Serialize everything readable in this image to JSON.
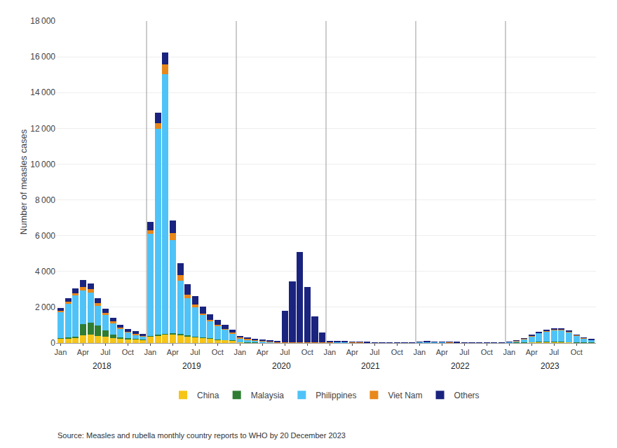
{
  "chart_data": {
    "type": "bar",
    "stacked": true,
    "grid": true,
    "legend": "bottom",
    "ylabel": "Number of measles cases",
    "source": "Source: Measles and rubella monthly country reports to WHO by 20 December 2023",
    "annotations": [
      "2018",
      "2019",
      "2020",
      "2021",
      "2022",
      "2023"
    ],
    "ylim": [
      0,
      18000
    ],
    "yticks": [
      0,
      {
        "value": 2000,
        "label": "2 000"
      },
      {
        "value": 4000,
        "label": "4 000"
      },
      {
        "value": 6000,
        "label": "6 000"
      },
      {
        "value": 8000,
        "label": "8 000"
      },
      {
        "value": 10000,
        "label": "10 000"
      },
      {
        "value": 12000,
        "label": "12 000"
      },
      {
        "value": 14000,
        "label": "14 000"
      },
      {
        "value": 16000,
        "label": "16 000"
      },
      {
        "value": 18000,
        "label": "18 000"
      }
    ],
    "categories": [
      "Jan",
      null,
      null,
      "Apr",
      null,
      null,
      "Jul",
      null,
      null,
      "Oct",
      null,
      null,
      "Jan",
      null,
      null,
      "Apr",
      null,
      null,
      "Jul",
      null,
      null,
      "Oct",
      null,
      null,
      "Jan",
      null,
      null,
      "Apr",
      null,
      null,
      "Jul",
      null,
      null,
      "Oct",
      null,
      null,
      "Jan",
      null,
      null,
      "Apr",
      null,
      null,
      "Jul",
      null,
      null,
      "Oct",
      null,
      null,
      "Jan",
      null,
      null,
      "Apr",
      null,
      null,
      "Jul",
      null,
      null,
      "Oct",
      null,
      null,
      "Jan",
      null,
      null,
      "Apr",
      null,
      null,
      "Jul",
      null,
      null,
      "Oct",
      null,
      null
    ],
    "series": [
      {
        "name": "China",
        "color": "#F5C518",
        "values": [
          240,
          270,
          300,
          420,
          460,
          400,
          340,
          290,
          250,
          220,
          200,
          170,
          380,
          430,
          480,
          500,
          460,
          390,
          340,
          290,
          255,
          195,
          165,
          145,
          45,
          35,
          28,
          18,
          13,
          9,
          7,
          4,
          4,
          9,
          9,
          9,
          9,
          9,
          9,
          9,
          9,
          7,
          4,
          4,
          4,
          4,
          4,
          4,
          4,
          4,
          9,
          14,
          9,
          7,
          4,
          4,
          4,
          4,
          4,
          4,
          9,
          18,
          28,
          48,
          68,
          78,
          68,
          58,
          48,
          38,
          28,
          22
        ]
      },
      {
        "name": "Malaysia",
        "color": "#2E7D32",
        "values": [
          18,
          28,
          48,
          620,
          660,
          590,
          380,
          190,
          75,
          45,
          28,
          18,
          18,
          28,
          38,
          48,
          38,
          28,
          18,
          13,
          9,
          9,
          9,
          9,
          4,
          4,
          4,
          4,
          4,
          4,
          4,
          4,
          4,
          4,
          4,
          4,
          4,
          4,
          4,
          4,
          4,
          4,
          4,
          4,
          4,
          4,
          4,
          4,
          4,
          4,
          4,
          4,
          4,
          4,
          4,
          4,
          4,
          4,
          4,
          4,
          4,
          4,
          4,
          4,
          4,
          4,
          4,
          4,
          4,
          4,
          4,
          4
        ]
      },
      {
        "name": "Philippines",
        "color": "#4FC3F7",
        "values": [
          1450,
          1900,
          2300,
          1900,
          1700,
          1100,
          850,
          650,
          480,
          330,
          235,
          185,
          5700,
          11500,
          14500,
          5200,
          3000,
          2100,
          1650,
          1250,
          950,
          750,
          570,
          380,
          190,
          140,
          90,
          70,
          45,
          25,
          18,
          13,
          9,
          9,
          9,
          9,
          25,
          35,
          45,
          25,
          18,
          13,
          9,
          7,
          4,
          4,
          4,
          4,
          45,
          55,
          45,
          25,
          18,
          13,
          9,
          7,
          4,
          4,
          4,
          4,
          45,
          95,
          190,
          335,
          480,
          575,
          670,
          670,
          570,
          380,
          235,
          140
        ]
      },
      {
        "name": "Viet Nam",
        "color": "#E8871A",
        "values": [
          95,
          115,
          145,
          190,
          190,
          145,
          95,
          75,
          55,
          45,
          38,
          28,
          190,
          335,
          570,
          380,
          285,
          190,
          145,
          95,
          75,
          55,
          45,
          38,
          75,
          75,
          55,
          45,
          38,
          28,
          18,
          13,
          9,
          9,
          9,
          9,
          9,
          9,
          9,
          9,
          9,
          9,
          9,
          9,
          9,
          9,
          9,
          9,
          9,
          9,
          9,
          9,
          9,
          9,
          9,
          9,
          9,
          9,
          9,
          9,
          9,
          9,
          18,
          28,
          28,
          28,
          28,
          28,
          28,
          18,
          18,
          18
        ]
      },
      {
        "name": "Others",
        "color": "#1A237E",
        "values": [
          145,
          190,
          240,
          380,
          335,
          285,
          240,
          190,
          170,
          150,
          145,
          125,
          475,
          570,
          665,
          715,
          665,
          570,
          475,
          380,
          335,
          285,
          240,
          190,
          95,
          75,
          55,
          45,
          38,
          28,
          1750,
          3400,
          5050,
          3100,
          1450,
          570,
          45,
          38,
          28,
          18,
          13,
          9,
          7,
          4,
          4,
          4,
          4,
          4,
          9,
          9,
          9,
          9,
          9,
          9,
          9,
          9,
          9,
          9,
          9,
          9,
          9,
          9,
          9,
          18,
          28,
          28,
          28,
          28,
          28,
          18,
          18,
          13
        ]
      }
    ]
  }
}
